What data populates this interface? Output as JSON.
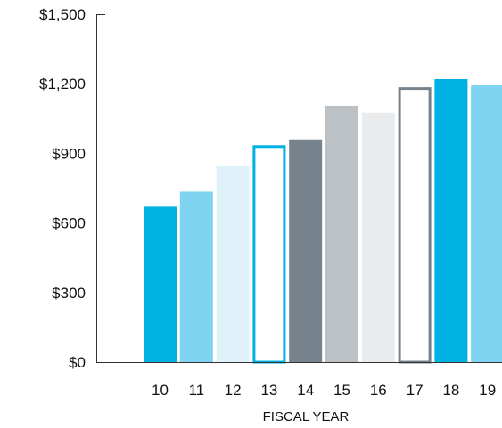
{
  "chart_data": {
    "type": "bar",
    "categories": [
      "10",
      "11",
      "12",
      "13",
      "14",
      "15",
      "16",
      "17",
      "18",
      "19"
    ],
    "values": [
      670,
      735,
      845,
      935,
      960,
      1105,
      1075,
      1185,
      1220,
      1195
    ],
    "bar_colors": [
      "#00b2e3",
      "#7fd4f1",
      "#dff2f9",
      "#ffffff",
      "#77838c",
      "#bcc1c6",
      "#eaebec",
      "#ffffff",
      "#00b2e3",
      "#7fd4f1"
    ],
    "bar_outline_colors": [
      "",
      "",
      "",
      "#00b2e3",
      "",
      "",
      "",
      "#77838c",
      "",
      ""
    ],
    "yticks": [
      0,
      300,
      600,
      900,
      1200,
      1500
    ],
    "ytick_labels": [
      "$0",
      "$300",
      "$600",
      "$900",
      "$1,200",
      "$1,500"
    ],
    "ylim": [
      0,
      1500
    ],
    "xlabel": "FISCAL YEAR",
    "ylabel": "",
    "title": "",
    "grid": false,
    "legend": "none"
  }
}
